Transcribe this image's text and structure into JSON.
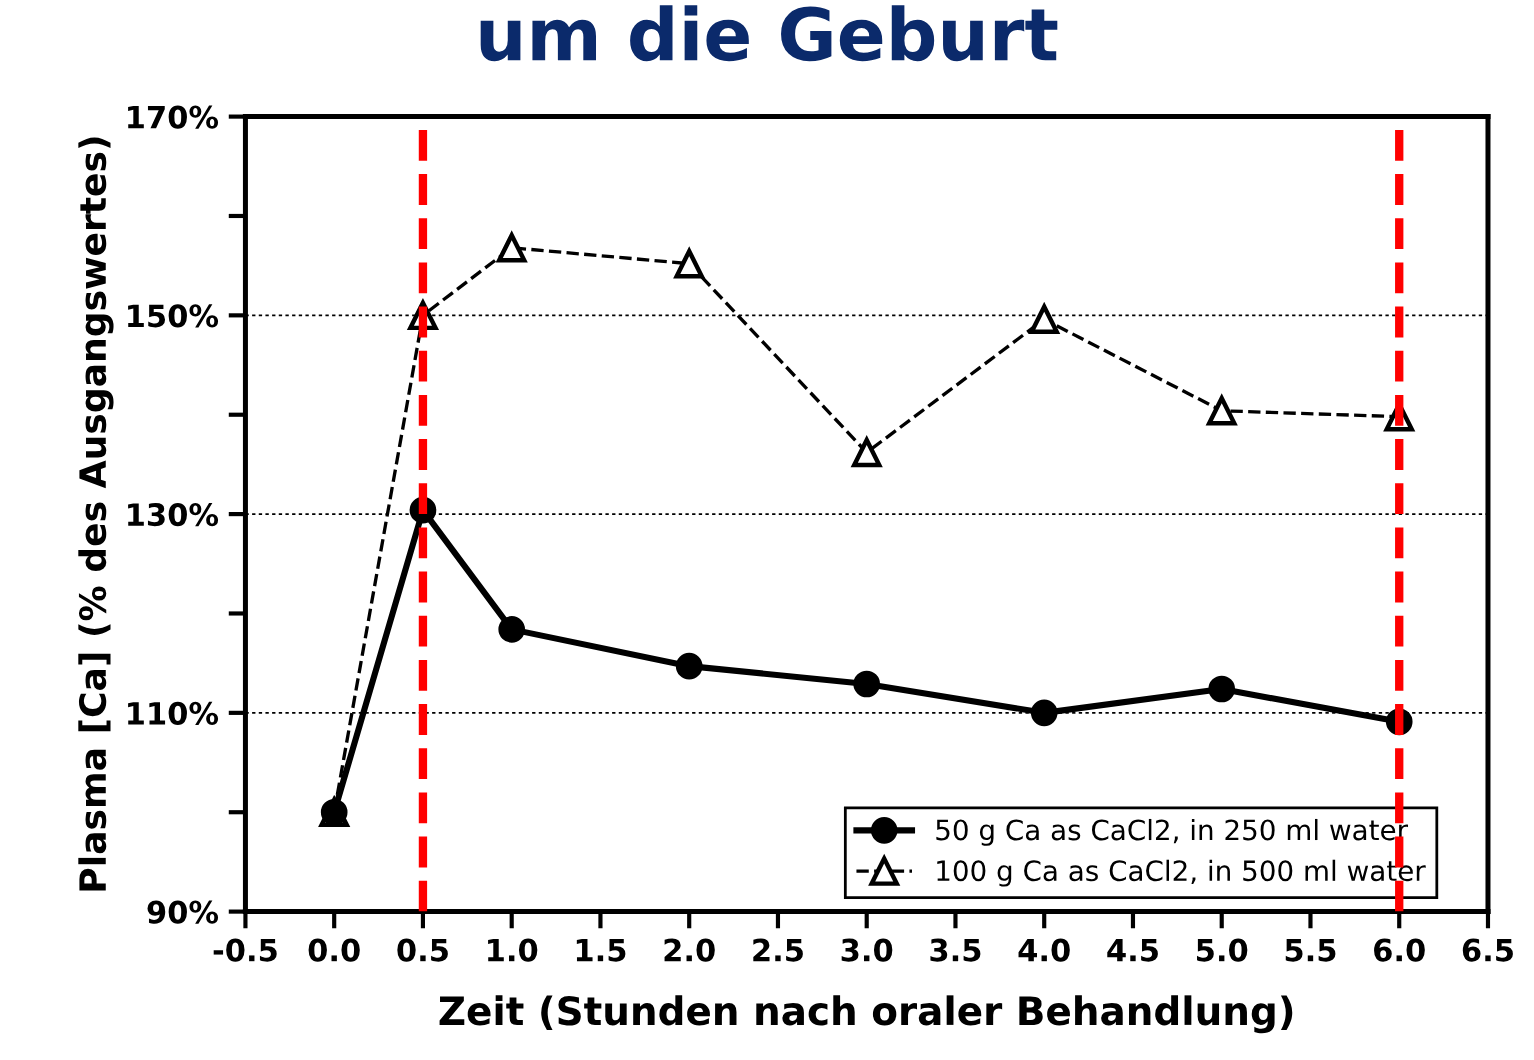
{
  "chart_data": {
    "type": "line",
    "title": "um die Geburt",
    "xlabel": "Zeit (Stunden nach oraler Behandlung)",
    "ylabel": "Plasma [Ca] (% des Ausgangswertes)",
    "x": [
      0,
      0.5,
      1,
      2,
      3,
      4,
      5,
      6
    ],
    "series": [
      {
        "name": "50 g Ca as CaCl2, in 250 ml water",
        "color": "#000000",
        "marker": "circle",
        "line_style": "solid",
        "values": [
          100,
          130.4,
          118.4,
          114.7,
          112.9,
          110,
          112.4,
          109.1
        ]
      },
      {
        "name": "100 g Ca as CaCl2, in 500 ml water",
        "color": "#000000",
        "marker": "triangle",
        "line_style": "dashed",
        "values": [
          100,
          150,
          156.8,
          155.2,
          136.2,
          149.6,
          140.4,
          139.8
        ]
      }
    ],
    "xlim": [
      -0.5,
      6.5
    ],
    "xticks": [
      {
        "value": -0.5,
        "label": "-0.5"
      },
      {
        "value": 0,
        "label": "0.0"
      },
      {
        "value": 0.5,
        "label": "0.5"
      },
      {
        "value": 1,
        "label": "1.0"
      },
      {
        "value": 1.5,
        "label": "1.5"
      },
      {
        "value": 2,
        "label": "2.0"
      },
      {
        "value": 2.5,
        "label": "2.5"
      },
      {
        "value": 3,
        "label": "3.0"
      },
      {
        "value": 3.5,
        "label": "3.5"
      },
      {
        "value": 4,
        "label": "4.0"
      },
      {
        "value": 4.5,
        "label": "4.5"
      },
      {
        "value": 5,
        "label": "5.0"
      },
      {
        "value": 5.5,
        "label": "5.5"
      },
      {
        "value": 6,
        "label": "6.0"
      },
      {
        "value": 6.5,
        "label": "6.5"
      }
    ],
    "ylim": [
      90,
      170
    ],
    "yticks": [
      {
        "value": 90,
        "label": "90%"
      },
      {
        "value": 100,
        "label": null
      },
      {
        "value": 110,
        "label": "110%"
      },
      {
        "value": 120,
        "label": null
      },
      {
        "value": 130,
        "label": "130%"
      },
      {
        "value": 140,
        "label": null
      },
      {
        "value": 150,
        "label": "150%"
      },
      {
        "value": 160,
        "label": null
      },
      {
        "value": 170,
        "label": "170%"
      }
    ],
    "grid": "y",
    "legend": "bottom right",
    "ref_lines": [
      {
        "axis": "x",
        "value": 0.5,
        "color": "#ff0000",
        "line_style": "dashed"
      },
      {
        "axis": "x",
        "value": 6,
        "color": "#ff0000",
        "line_style": "dashed"
      }
    ]
  }
}
